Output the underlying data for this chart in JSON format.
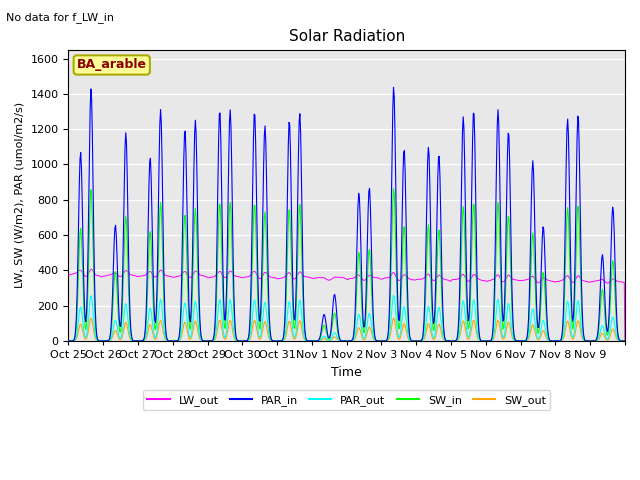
{
  "title": "Solar Radiation",
  "subtitle": "No data for f_LW_in",
  "xlabel": "Time",
  "ylabel": "LW, SW (W/m2), PAR (umol/m2/s)",
  "annotation": "BA_arable",
  "ylim": [
    0,
    1650
  ],
  "yticks": [
    0,
    200,
    400,
    600,
    800,
    1000,
    1200,
    1400,
    1600
  ],
  "xtick_labels": [
    "Oct 25",
    "Oct 26",
    "Oct 27",
    "Oct 28",
    "Oct 29",
    "Oct 30",
    "Oct 31",
    "Nov 1",
    "Nov 2",
    "Nov 3",
    "Nov 4",
    "Nov 5",
    "Nov 6",
    "Nov 7",
    "Nov 8",
    "Nov 9"
  ],
  "colors": {
    "LW_out": "#ff00ff",
    "PAR_in": "#0000ff",
    "PAR_out": "#00ffff",
    "SW_in": "#00ff00",
    "SW_out": "#ffa500",
    "background": "#e8e8e8"
  },
  "n_days": 16,
  "par_in_peaks1": [
    1070,
    660,
    1040,
    1200,
    1310,
    1300,
    1250,
    150,
    840,
    1440,
    1100,
    1270,
    1310,
    1020,
    1260,
    490
  ],
  "par_in_peaks2": [
    1430,
    1180,
    1310,
    1250,
    1310,
    1220,
    1290,
    265,
    870,
    1090,
    1060,
    1310,
    1190,
    650,
    1280,
    760
  ],
  "sw_ratio": 0.6,
  "par_out_ratio": 0.18,
  "sw_out_ratio": 0.09,
  "lw_base": 370,
  "lw_amplitude": 30
}
